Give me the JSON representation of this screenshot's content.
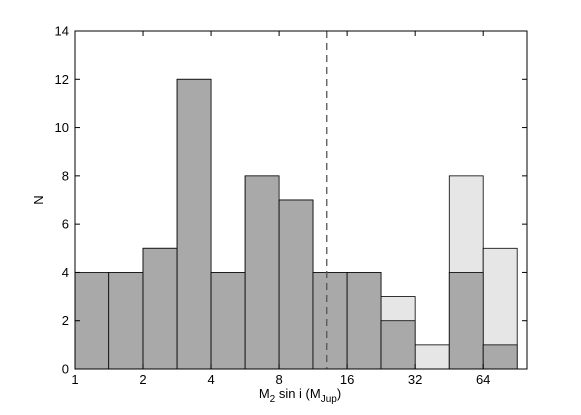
{
  "chart_data": {
    "type": "bar",
    "subtype": "histogram",
    "xscale": "log2",
    "xlim": [
      1,
      100
    ],
    "ylim": [
      0,
      14
    ],
    "grid": false,
    "x_ticks": [
      1,
      2,
      4,
      8,
      16,
      32,
      64
    ],
    "x_tick_labels": [
      "1",
      "2",
      "4",
      "8",
      "16",
      "32",
      "64"
    ],
    "y_ticks": [
      0,
      2,
      4,
      6,
      8,
      10,
      12,
      14
    ],
    "y_tick_labels": [
      "0",
      "2",
      "4",
      "6",
      "8",
      "10",
      "12",
      "14"
    ],
    "ylabel": "N",
    "xlabel": {
      "prefix": "M",
      "prefix_sub": "2",
      "middle": " sin i (M",
      "unit_sub": "Jup",
      "suffix": ")"
    },
    "bin_edges": [
      1,
      1.41,
      2,
      2.83,
      4,
      5.66,
      8,
      11.3,
      16,
      22.6,
      32,
      45.3,
      64,
      90.5
    ],
    "series": [
      {
        "values": [
          4,
          5,
          12,
          4,
          8,
          7,
          4,
          4,
          3,
          1,
          8,
          5
        ],
        "color": "#e6e6e6",
        "start_bin": 1
      },
      {
        "values": [
          4,
          5,
          12,
          4,
          8,
          7,
          4,
          4,
          2,
          0,
          4,
          1
        ],
        "color": "#a9a9a9",
        "start_bin": 1
      }
    ],
    "first_bin_value": 4,
    "reference_line": {
      "x": 13,
      "style": "dashed",
      "color": "#555555"
    }
  }
}
